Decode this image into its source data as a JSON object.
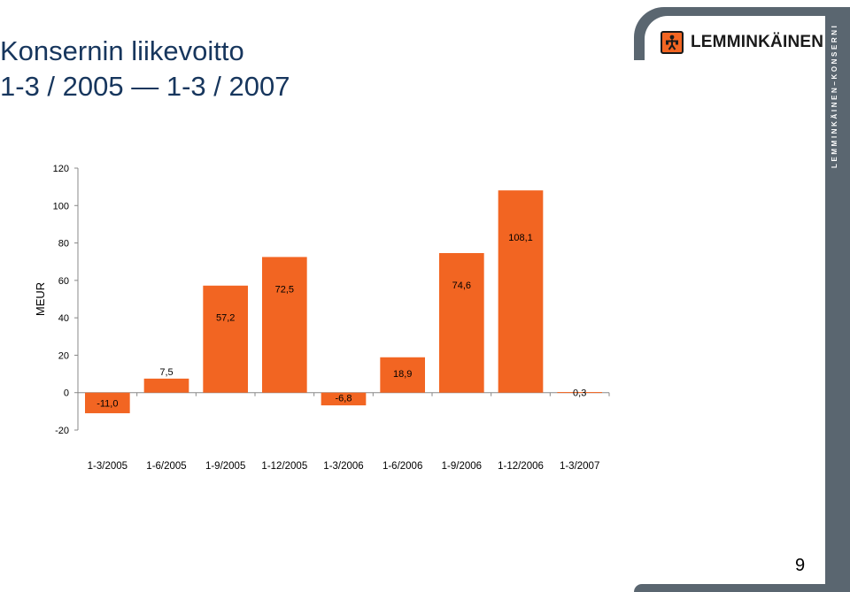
{
  "slide": {
    "title_line1": "Konsernin liikevoitto",
    "title_line2": "1-3 / 2005 — 1-3 / 2007",
    "page_number": "9"
  },
  "brand": {
    "logo_text": "LEMMINKÄINEN",
    "side_text": "LEMMINKÄINEN–KONSERNI",
    "logo_icon": "worker-figure-icon",
    "accent_color": "#f26522",
    "band_color": "#5a6670"
  },
  "chart_data": {
    "type": "bar",
    "ylabel": "MEUR",
    "ylim": [
      -20,
      120
    ],
    "yticks": [
      -20,
      0,
      20,
      40,
      60,
      80,
      100,
      120
    ],
    "grid": false,
    "bar_color": "#f26522",
    "categories": [
      "1-3/2005",
      "1-6/2005",
      "1-9/2005",
      "1-12/2005",
      "1-3/2006",
      "1-6/2006",
      "1-9/2006",
      "1-12/2006",
      "1-3/2007"
    ],
    "values": [
      -11.0,
      7.5,
      57.2,
      72.5,
      -6.8,
      18.9,
      74.6,
      108.1,
      0.3
    ],
    "data_labels": [
      "-11,0",
      "7,5",
      "57,2",
      "72,5",
      "-6,8",
      "18,9",
      "74,6",
      "108,1",
      "0,3"
    ]
  }
}
